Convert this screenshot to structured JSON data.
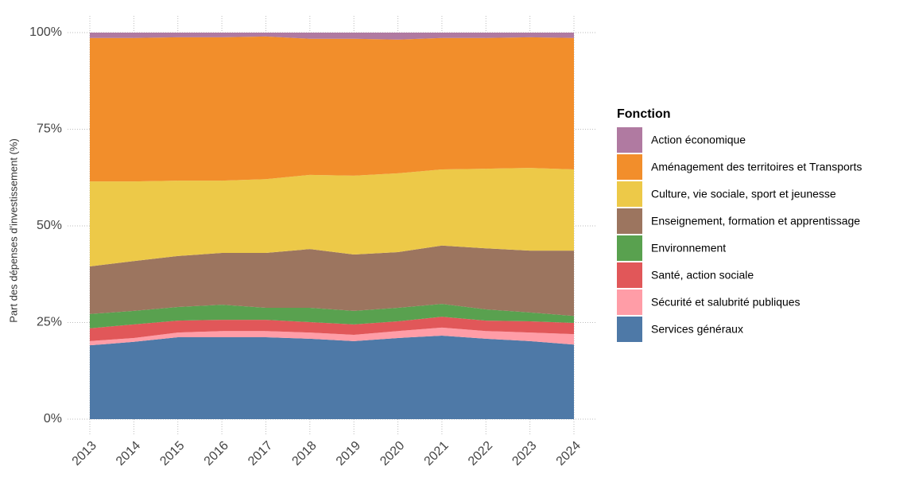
{
  "chart_data": {
    "type": "stacked_area",
    "y_label": "Part des dépenses d'investissement (%)",
    "legend_title": "Fonction",
    "legend_position": "right",
    "grid": true,
    "categories": [
      "2013",
      "2014",
      "2015",
      "2016",
      "2017",
      "2018",
      "2019",
      "2020",
      "2021",
      "2022",
      "2023",
      "2024"
    ],
    "ylim": [
      0,
      100
    ],
    "yticks": [
      {
        "value": 0,
        "label": "0%"
      },
      {
        "value": 25,
        "label": "25%"
      },
      {
        "value": 50,
        "label": "50%"
      },
      {
        "value": 75,
        "label": "75%"
      },
      {
        "value": 100,
        "label": "100%"
      }
    ],
    "series": [
      {
        "name": "Action économique",
        "color": "#b07aa1",
        "values": [
          1.4,
          1.4,
          1.2,
          1.2,
          1.0,
          1.6,
          1.6,
          1.8,
          1.4,
          1.4,
          1.2,
          1.4
        ]
      },
      {
        "name": "Aménagement des territoires et Transports",
        "color": "#f28e2b",
        "values": [
          37.1,
          37.1,
          37.1,
          37.1,
          36.9,
          35.2,
          35.4,
          34.6,
          34.0,
          33.8,
          33.8,
          34.0
        ]
      },
      {
        "name": "Culture, vie sociale, sport et jeunesse",
        "color": "#edc948",
        "values": [
          22.0,
          20.6,
          19.5,
          18.7,
          19.1,
          19.2,
          20.4,
          20.4,
          19.7,
          20.6,
          21.4,
          21.0
        ]
      },
      {
        "name": "Enseignement, formation et apprentissage",
        "color": "#9c755f",
        "values": [
          12.3,
          12.9,
          13.2,
          13.4,
          14.2,
          15.2,
          14.6,
          14.4,
          15.1,
          15.8,
          16.0,
          16.9
        ]
      },
      {
        "name": "Environnement",
        "color": "#59a14f",
        "values": [
          3.7,
          3.5,
          3.5,
          3.9,
          3.1,
          3.7,
          3.5,
          3.5,
          3.3,
          2.9,
          2.3,
          1.8
        ]
      },
      {
        "name": "Santé, action sociale",
        "color": "#e15759",
        "values": [
          3.3,
          3.5,
          3.1,
          2.9,
          2.9,
          2.7,
          2.7,
          2.5,
          2.8,
          2.7,
          2.9,
          2.9
        ]
      },
      {
        "name": "Sécurité et salubrité publiques",
        "color": "#ff9da7",
        "values": [
          1.1,
          1.0,
          1.2,
          1.6,
          1.6,
          1.6,
          1.6,
          1.8,
          2.1,
          2.0,
          2.2,
          2.7
        ]
      },
      {
        "name": "Services généraux",
        "color": "#4e79a7",
        "values": [
          19.1,
          20.0,
          21.2,
          21.2,
          21.2,
          20.8,
          20.2,
          21.0,
          21.6,
          20.8,
          20.2,
          19.3
        ]
      }
    ]
  }
}
